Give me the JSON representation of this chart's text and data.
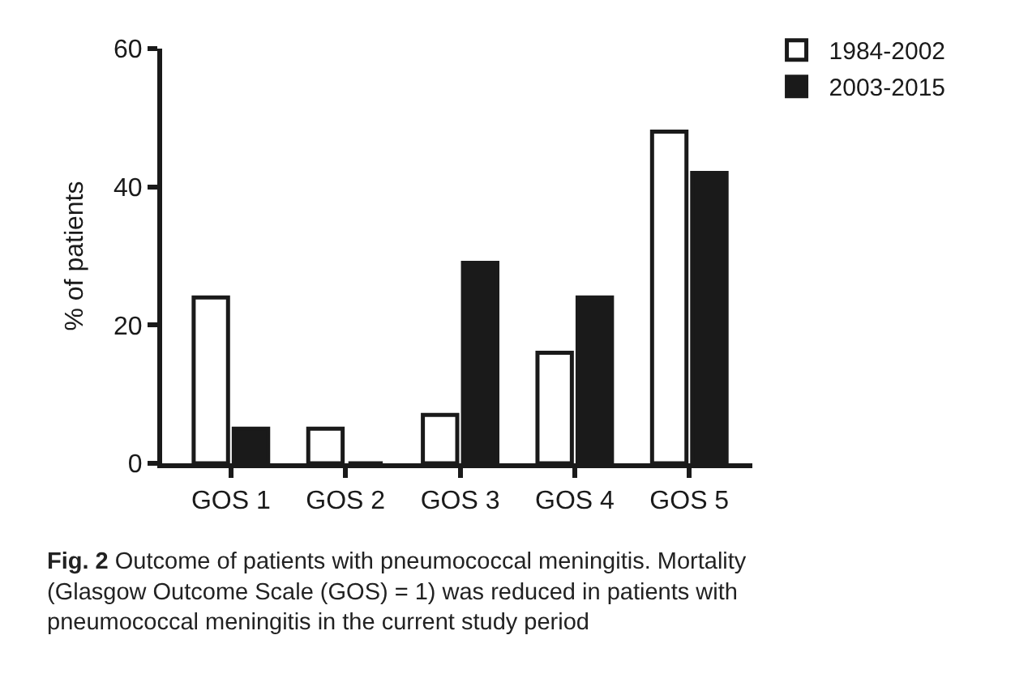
{
  "chart_data": {
    "type": "bar",
    "ylabel": "% of patients",
    "categories": [
      "GOS 1",
      "GOS 2",
      "GOS 3",
      "GOS 4",
      "GOS 5"
    ],
    "series": [
      {
        "name": "1984-2002",
        "color": "#ffffff",
        "values": [
          24,
          5,
          7,
          16,
          48
        ]
      },
      {
        "name": "2003-2015",
        "color": "#1a1a1a",
        "values": [
          5,
          0,
          29,
          24,
          42
        ]
      }
    ],
    "ylim": [
      0,
      60
    ],
    "yticks": [
      0,
      20,
      40,
      60
    ],
    "legend": "top right",
    "annotations": [
      "Fig. 2 Outcome of patients with pneumococcal meningitis. Mortality (Glasgow Outcome Scale (GOS) = 1) was reduced in patients with pneumococcal meningitis in the current study period"
    ]
  }
}
